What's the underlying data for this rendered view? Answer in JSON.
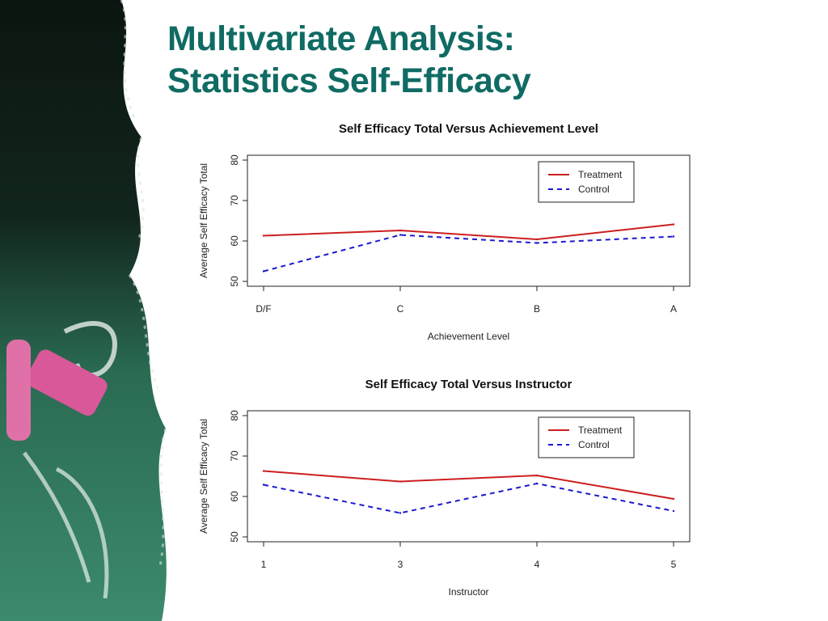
{
  "slide": {
    "title_line1": "Multivariate Analysis:",
    "title_line2": "Statistics Self-Efficacy"
  },
  "colors": {
    "title": "#0f6b63",
    "treatment": "#cc1f1f",
    "control": "#1a1acc",
    "chalkboard": "#2f7a5e",
    "chalk_pink": "#d8589a"
  },
  "chart_data": [
    {
      "type": "line",
      "title": "Self Efficacy Total Versus Achievement Level",
      "xlabel": "Achievement Level",
      "ylabel": "Average Self Efficacy Total",
      "categories": [
        "D/F",
        "C",
        "B",
        "A"
      ],
      "ylim": [
        50,
        80
      ],
      "yticks": [
        "50",
        "60",
        "70",
        "80"
      ],
      "series": [
        {
          "name": "Treatment",
          "style": "solid",
          "values": [
            61.3,
            62.6,
            60.4,
            64.1
          ]
        },
        {
          "name": "Control",
          "style": "dashed",
          "values": [
            52.5,
            61.5,
            59.5,
            61.1
          ]
        }
      ],
      "legend": "top-right",
      "grid": false
    },
    {
      "type": "line",
      "title": "Self Efficacy Total Versus Instructor",
      "xlabel": "Instructor",
      "ylabel": "Average Self Efficacy Total",
      "categories": [
        "1",
        "3",
        "4",
        "5"
      ],
      "ylim": [
        50,
        80
      ],
      "yticks": [
        "50",
        "60",
        "70",
        "80"
      ],
      "series": [
        {
          "name": "Treatment",
          "style": "solid",
          "values": [
            66.3,
            63.7,
            65.2,
            59.4
          ]
        },
        {
          "name": "Control",
          "style": "dashed",
          "values": [
            62.9,
            55.9,
            63.2,
            56.4
          ]
        }
      ],
      "legend": "top-right",
      "grid": false
    }
  ]
}
